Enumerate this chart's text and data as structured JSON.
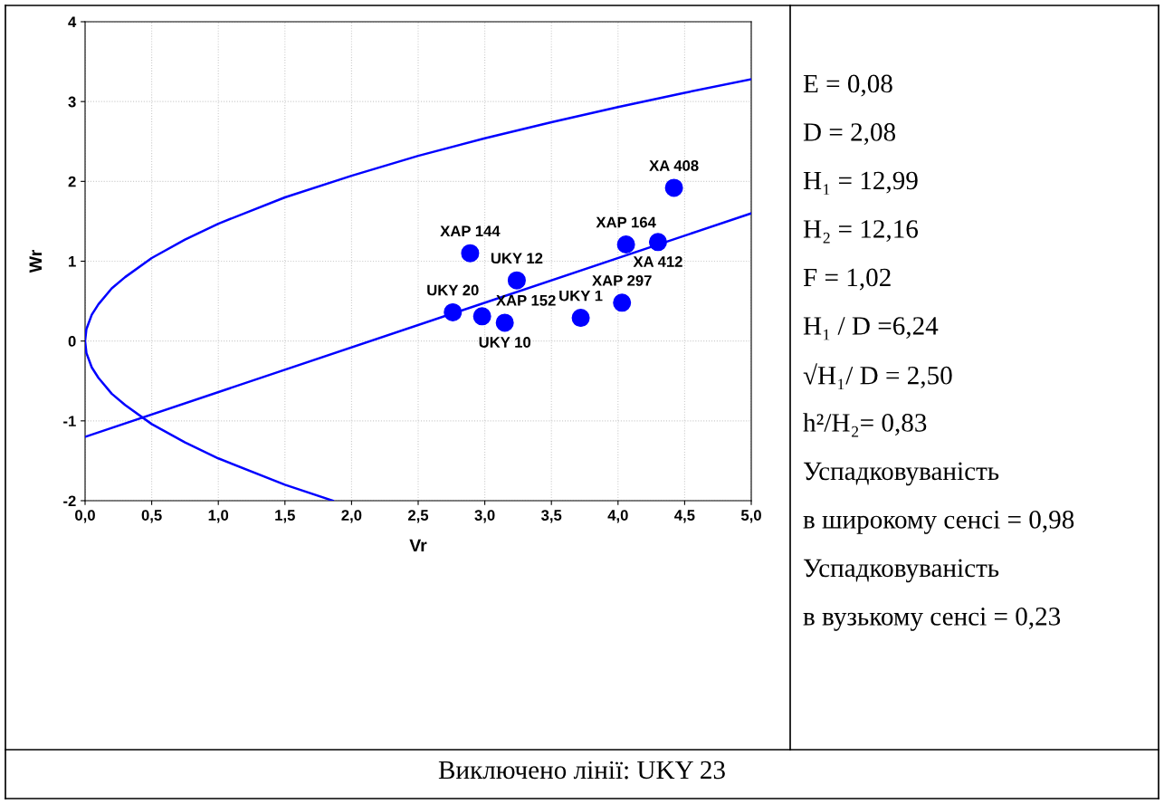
{
  "chart_data": {
    "type": "scatter",
    "xlabel": "Vr",
    "ylabel": "Wr",
    "xlim": [
      0,
      5
    ],
    "ylim": [
      -2,
      4
    ],
    "xticks": [
      {
        "value": 0,
        "label": "0,0"
      },
      {
        "value": 0.5,
        "label": "0,5"
      },
      {
        "value": 1,
        "label": "1,0"
      },
      {
        "value": 1.5,
        "label": "1,5"
      },
      {
        "value": 2,
        "label": "2,0"
      },
      {
        "value": 2.5,
        "label": "2,5"
      },
      {
        "value": 3,
        "label": "3,0"
      },
      {
        "value": 3.5,
        "label": "3,5"
      },
      {
        "value": 4,
        "label": "4,0"
      },
      {
        "value": 4.5,
        "label": "4,5"
      },
      {
        "value": 5,
        "label": "5,0"
      }
    ],
    "yticks": [
      -2,
      -1,
      0,
      1,
      2,
      3,
      4
    ],
    "grid": true,
    "marker": "circle",
    "series": [
      {
        "color": "#0000ff",
        "x": [
          4.42,
          4.06,
          4.3,
          2.89,
          3.24,
          4.03,
          3.72,
          2.76,
          2.98,
          3.15
        ],
        "values": [
          1.92,
          1.21,
          1.24,
          1.1,
          0.76,
          0.48,
          0.29,
          0.36,
          0.31,
          0.23
        ]
      },
      {
        "type": "line",
        "color": "#0000ff",
        "marker": "none",
        "x": [
          0,
          5
        ],
        "values": [
          -1.2,
          1.6
        ]
      },
      {
        "type": "line",
        "color": "#0000ff",
        "marker": "none",
        "x": [
          1.86,
          1.5,
          1.0,
          0.75,
          0.5,
          0.3,
          0.2,
          0.1,
          0.05,
          0.01,
          0,
          0.01,
          0.05,
          0.1,
          0.2,
          0.3,
          0.5,
          0.75,
          1,
          1.5,
          2,
          2.5,
          3,
          3.5,
          4,
          4.5,
          5
        ],
        "values": [
          -2.0,
          -1.8,
          -1.47,
          -1.27,
          -1.04,
          -0.8,
          -0.66,
          -0.46,
          -0.33,
          -0.15,
          0,
          0.15,
          0.33,
          0.46,
          0.66,
          0.8,
          1.04,
          1.27,
          1.47,
          1.8,
          2.07,
          2.32,
          2.54,
          2.74,
          2.93,
          3.11,
          3.28
        ]
      }
    ],
    "annotations": [
      {
        "text": "XA 408",
        "x": 4.42,
        "y": 1.92
      },
      {
        "text": "XAP 164",
        "x": 4.06,
        "y": 1.21
      },
      {
        "text": "XA 412",
        "x": 4.3,
        "y": 1.24
      },
      {
        "text": "XAP 144",
        "x": 2.89,
        "y": 1.1
      },
      {
        "text": "UKY 12",
        "x": 3.24,
        "y": 0.76
      },
      {
        "text": "XAP 297",
        "x": 4.03,
        "y": 0.48
      },
      {
        "text": "UKY 1",
        "x": 3.72,
        "y": 0.29
      },
      {
        "text": "UKY 20",
        "x": 2.76,
        "y": 0.36
      },
      {
        "text": "XAP 152",
        "x": 2.98,
        "y": 0.31
      },
      {
        "text": "UKY 10",
        "x": 3.15,
        "y": 0.23
      },
      "E = 0,08",
      "D = 2,08",
      "H₁ = 12,99",
      "H₂ = 12,16",
      "F = 1,02",
      "H₁ / D =6,24",
      "√H₁/ D = 2,50",
      "h²/H₂= 0,83",
      "Успадковуваність",
      "в широкому сенсі = 0,98",
      "Успадковуваність",
      "в вузькому сенсі = 0,23",
      "Виключено лінії: UKY 23"
    ]
  }
}
